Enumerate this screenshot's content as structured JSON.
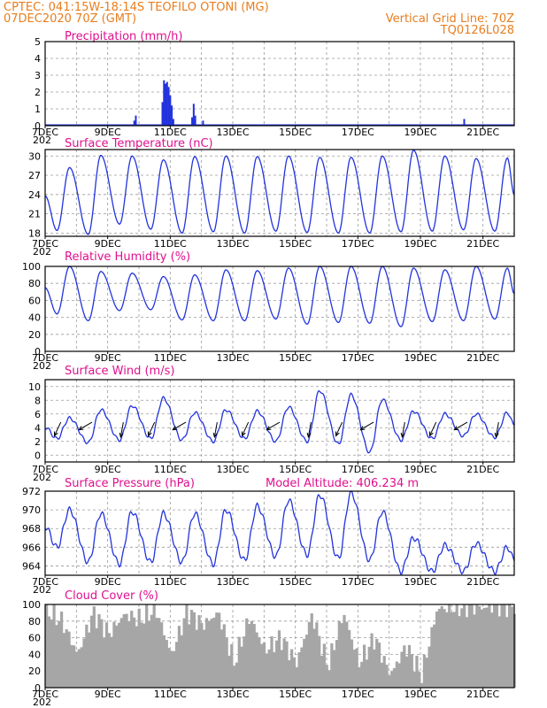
{
  "header": {
    "line1_left": "CPTEC:   041:15W-18:14S   TEOFILO OTONI (MG)",
    "line2_left": "07DEC2020 70Z (GMT)",
    "line2_right": "Vertical Grid Line: 70Z",
    "line3_right": "TQ0126L028"
  },
  "x_axis": {
    "start": "7DEC2020",
    "days": 15,
    "tick_labels": [
      "7DEC",
      "9DEC",
      "11DEC",
      "13DEC",
      "15DEC",
      "17DEC",
      "19DEC",
      "21DEC"
    ],
    "tick_days": [
      7,
      9,
      11,
      13,
      15,
      17,
      19,
      21
    ],
    "year_fragment": "202"
  },
  "colors": {
    "header": "#e87d1e",
    "title": "#e0108e",
    "series": "#2233dd",
    "cloud": "#a6a6a6"
  },
  "panels": [
    {
      "id": "precip",
      "title": "Precipitation (mm/h)",
      "ylim": [
        0,
        5
      ],
      "yticks": [
        "0",
        "1",
        "2",
        "3",
        "4",
        "5"
      ]
    },
    {
      "id": "temp",
      "title": "Surface Temperature (nC)",
      "ylim": [
        17.5,
        31
      ],
      "yticks": [
        "18",
        "21",
        "24",
        "27",
        "30"
      ]
    },
    {
      "id": "rh",
      "title": "Relative Humidity (%)",
      "ylim": [
        0,
        100
      ],
      "yticks": [
        "0",
        "20",
        "40",
        "60",
        "80",
        "100"
      ]
    },
    {
      "id": "wind",
      "title": "Surface Wind (m/s)",
      "ylim": [
        -1,
        11
      ],
      "yticks": [
        "0",
        "2",
        "4",
        "6",
        "8",
        "10"
      ]
    },
    {
      "id": "press",
      "title": "Surface Pressure (hPa)",
      "extra": "Model Altitude: 406.234 m",
      "ylim": [
        963,
        972
      ],
      "yticks": [
        "964",
        "966",
        "968",
        "970",
        "972"
      ]
    },
    {
      "id": "cloud",
      "title": "Cloud Cover (%)",
      "ylim": [
        0,
        100
      ],
      "yticks": [
        "0",
        "20",
        "40",
        "60",
        "80",
        "100"
      ]
    }
  ],
  "chart_data": [
    {
      "type": "bar",
      "title": "Precipitation (mm/h)",
      "x_unit": "day of December 2020",
      "x": [
        9.85,
        9.9,
        10.75,
        10.8,
        10.85,
        10.9,
        10.95,
        11.0,
        11.05,
        11.1,
        11.7,
        11.75,
        11.8,
        12.05,
        20.4
      ],
      "values": [
        0.3,
        0.6,
        1.4,
        2.7,
        2.5,
        2.6,
        2.3,
        1.8,
        1.2,
        0.4,
        0.5,
        1.3,
        0.6,
        0.3,
        0.4
      ],
      "ylim": [
        0,
        5
      ]
    },
    {
      "type": "line",
      "title": "Surface Temperature (nC)",
      "x_unit": "day of December 2020",
      "daily_min": [
        18.4,
        17.8,
        19.4,
        18.6,
        18.0,
        18.2,
        18.0,
        18.3,
        18.1,
        18.0,
        18.0,
        18.2,
        18.3,
        18.5,
        18.3
      ],
      "daily_max": [
        28.2,
        30.1,
        30.0,
        29.4,
        29.9,
        30.0,
        29.9,
        30.0,
        29.8,
        29.8,
        30.0,
        30.9,
        30.0,
        29.6,
        29.7
      ],
      "ylim": [
        17.5,
        31
      ]
    },
    {
      "type": "line",
      "title": "Relative Humidity (%)",
      "x_unit": "day of December 2020",
      "daily_min": [
        44,
        36,
        48,
        49,
        37,
        36,
        36,
        38,
        32,
        34,
        33,
        29,
        35,
        36,
        38
      ],
      "daily_max": [
        100,
        94,
        92,
        88,
        90,
        96,
        95,
        98,
        100,
        100,
        100,
        98,
        96,
        100,
        98
      ],
      "ylim": [
        0,
        100
      ]
    },
    {
      "type": "line",
      "title": "Surface Wind (m/s)",
      "x_unit": "day of December 2020",
      "daily_min": [
        2.4,
        1.8,
        2.2,
        2.4,
        2.2,
        2.0,
        2.4,
        2.0,
        2.0,
        1.6,
        0.4,
        2.2,
        2.4,
        2.8,
        2.6
      ],
      "daily_max": [
        5.4,
        6.6,
        7.2,
        8.3,
        6.2,
        6.6,
        6.4,
        7.0,
        9.4,
        8.8,
        8.1,
        6.4,
        6.0,
        6.0,
        6.2
      ],
      "wind_vectors_every_day_from": [
        7.5,
        8.5,
        9.5,
        10.5,
        11.5,
        12.5,
        13.5,
        14.5,
        15.5,
        16.5,
        17.5,
        18.5,
        19.5,
        20.5,
        21.5
      ],
      "ylim": [
        -1,
        11
      ]
    },
    {
      "type": "line",
      "title": "Surface Pressure (hPa)",
      "x_unit": "day of December 2020",
      "daily_min": [
        966.0,
        964.4,
        964.2,
        964.4,
        964.4,
        964.2,
        964.6,
        965.0,
        965.2,
        964.8,
        964.6,
        963.4,
        963.4,
        963.4,
        963.4
      ],
      "daily_max": [
        970.0,
        969.6,
        969.8,
        969.6,
        969.6,
        970.0,
        970.4,
        971.0,
        971.6,
        971.8,
        969.8,
        967.0,
        966.2,
        966.4,
        966.0
      ],
      "ylim": [
        963,
        972
      ]
    },
    {
      "type": "bar",
      "title": "Cloud Cover (%)",
      "x_unit": "day of December 2020",
      "x": [
        7.0,
        7.5,
        8.0,
        8.5,
        9.0,
        9.5,
        10.0,
        10.5,
        11.0,
        11.5,
        12.0,
        12.5,
        13.0,
        13.5,
        14.0,
        14.5,
        15.0,
        15.5,
        16.0,
        16.5,
        17.0,
        17.5,
        18.0,
        18.5,
        19.0,
        19.5,
        20.0,
        20.5,
        21.0,
        21.5
      ],
      "values": [
        93,
        80,
        40,
        90,
        65,
        88,
        82,
        94,
        40,
        92,
        75,
        90,
        30,
        85,
        45,
        60,
        30,
        88,
        25,
        90,
        30,
        60,
        15,
        50,
        15,
        95,
        96,
        97,
        96,
        98
      ],
      "ylim": [
        0,
        100
      ]
    }
  ]
}
